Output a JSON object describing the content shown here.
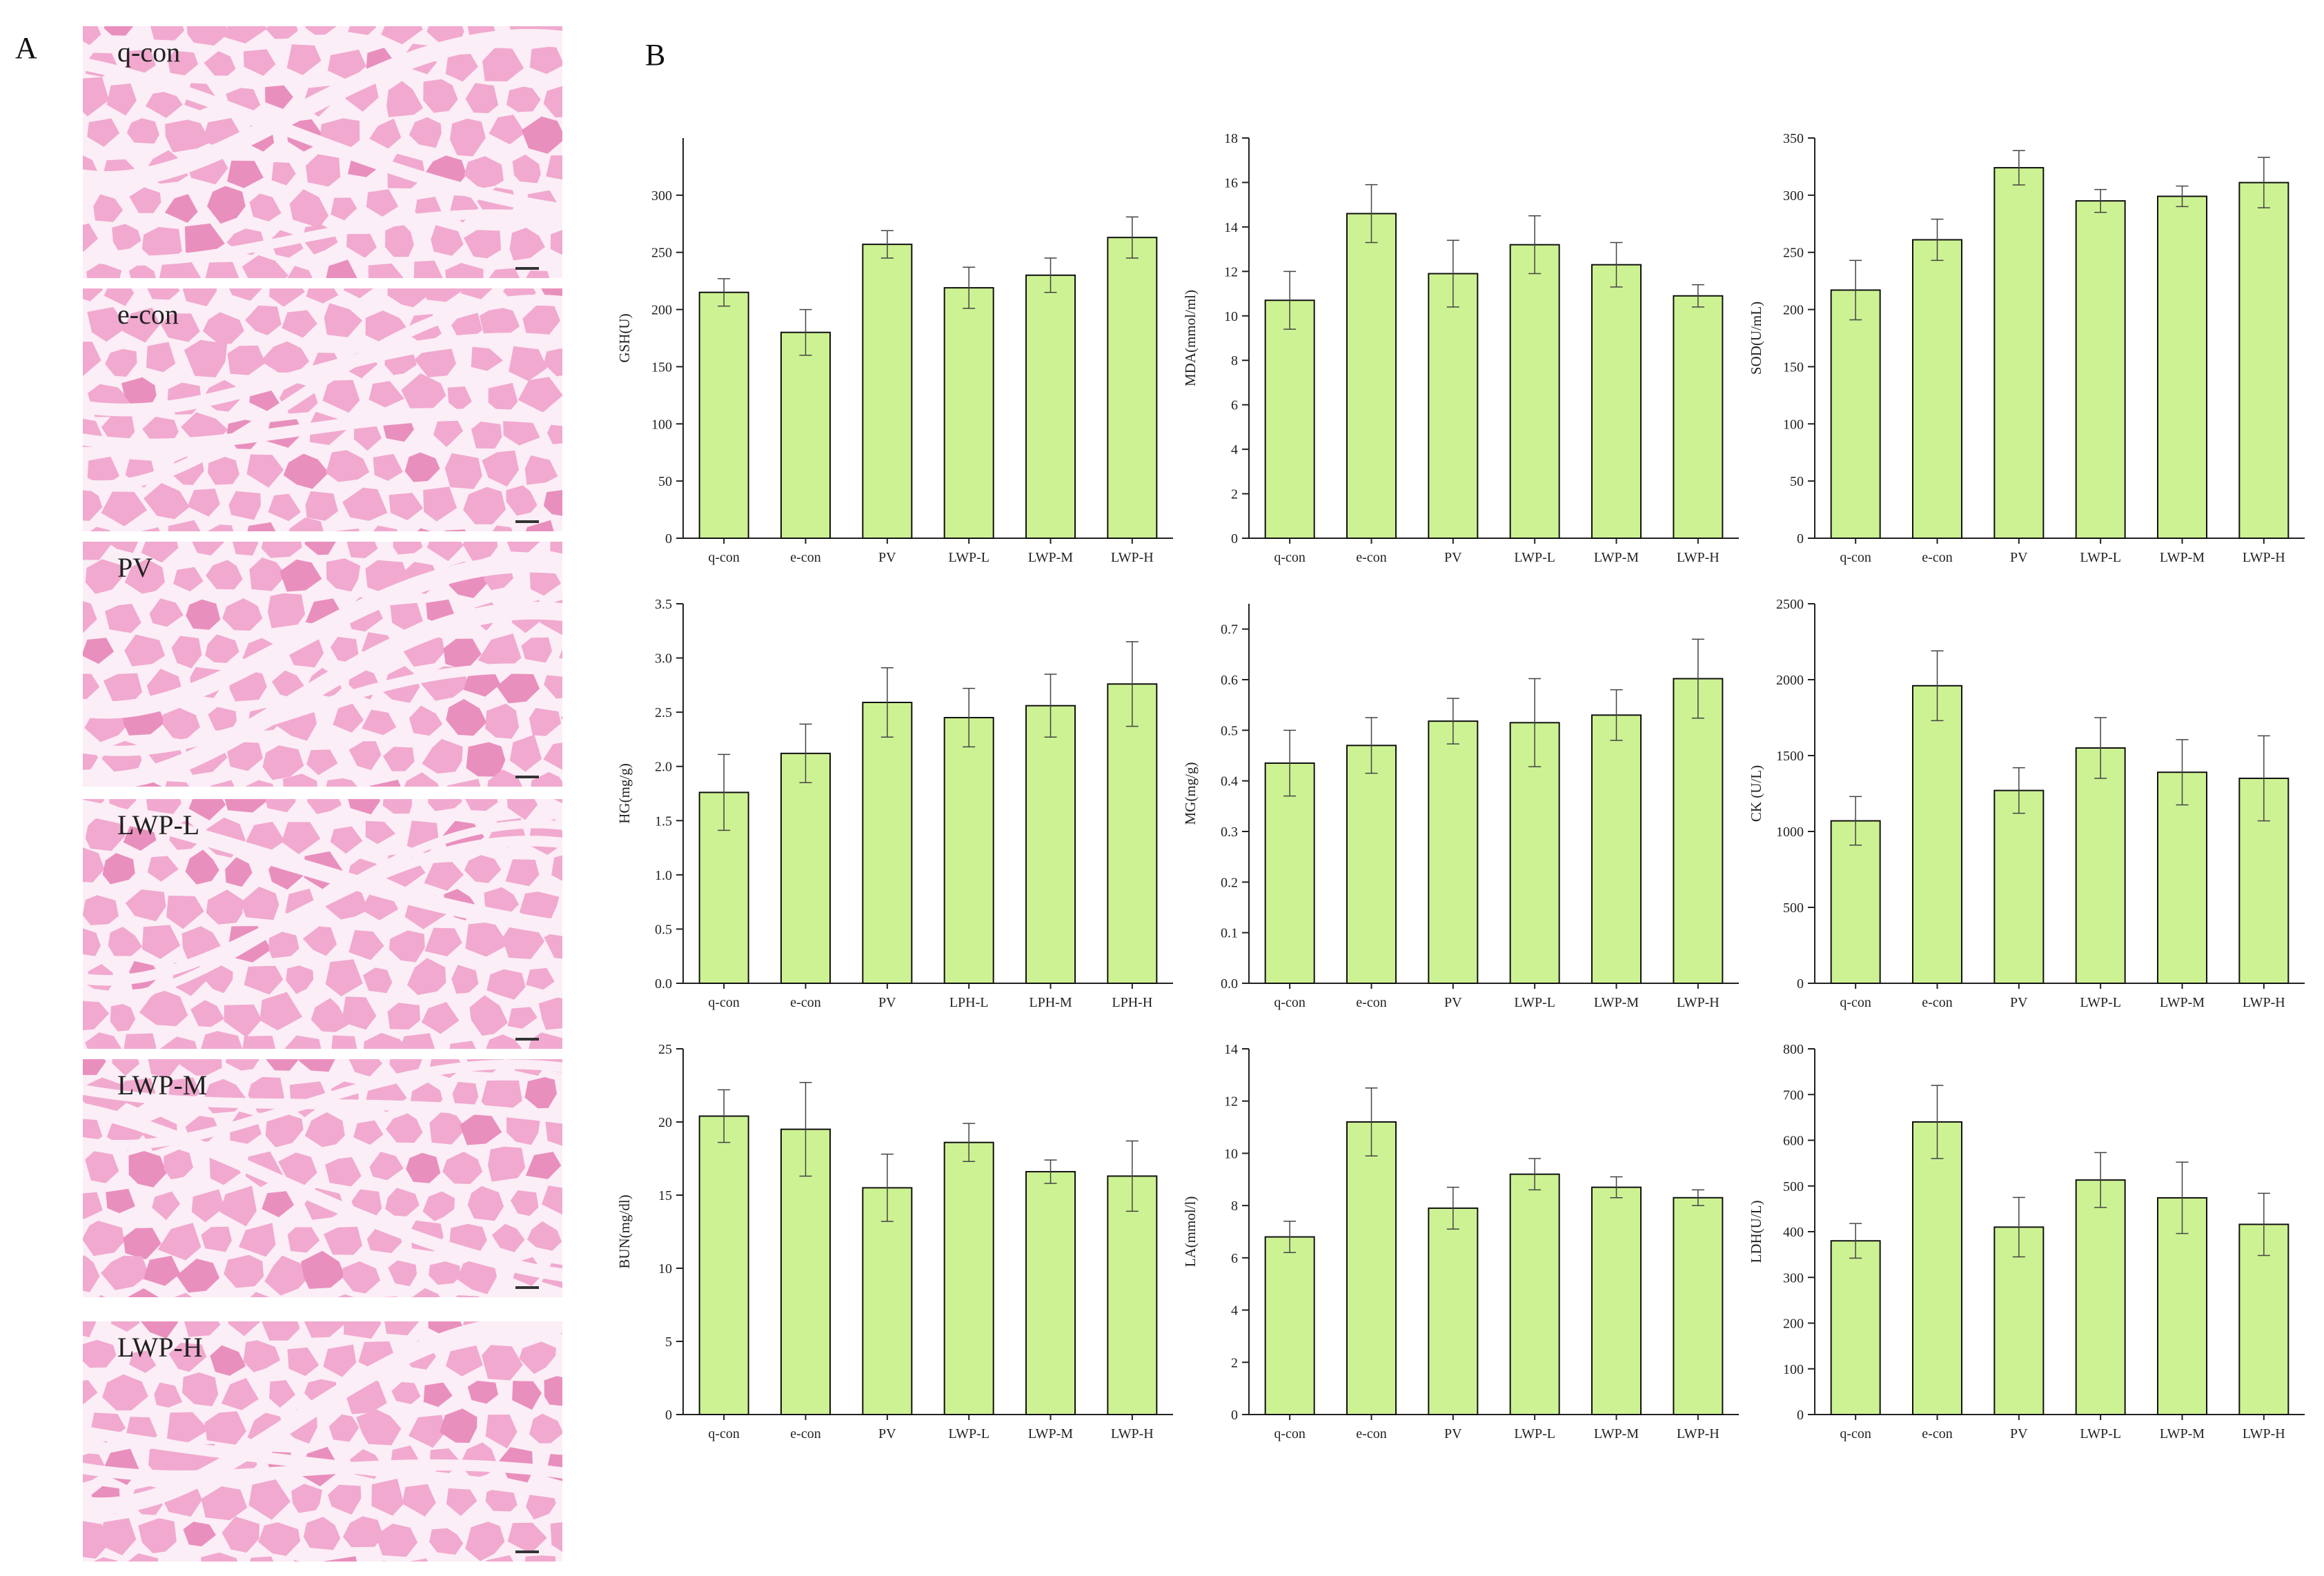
{
  "panels": {
    "a": "A",
    "b": "B"
  },
  "histology": {
    "tint": "#f1a9cf",
    "membrane": "#fbeef6",
    "labels": [
      "q-con",
      "e-con",
      "PV",
      "LWP-L",
      "LWP-M",
      "LWP-H"
    ]
  },
  "bar_color": "#cdf293",
  "chart_data": [
    {
      "type": "bar",
      "ylabel": "GSH(U)",
      "categories": [
        "q-con",
        "e-con",
        "PV",
        "LWP-L",
        "LWP-M",
        "LWP-H"
      ],
      "values": [
        215,
        180,
        257,
        219,
        230,
        263
      ],
      "errors": [
        12,
        20,
        12,
        18,
        15,
        18
      ],
      "ylim": [
        0,
        350
      ],
      "yticks": [
        0,
        50,
        100,
        150,
        200,
        250,
        300
      ]
    },
    {
      "type": "bar",
      "ylabel": "MDA(mmol/ml)",
      "categories": [
        "q-con",
        "e-con",
        "PV",
        "LWP-L",
        "LWP-M",
        "LWP-H"
      ],
      "values": [
        10.7,
        14.6,
        11.9,
        13.2,
        12.3,
        10.9
      ],
      "errors": [
        1.3,
        1.3,
        1.5,
        1.3,
        1.0,
        0.5
      ],
      "ylim": [
        0,
        18
      ],
      "yticks": [
        0,
        2,
        4,
        6,
        8,
        10,
        12,
        14,
        16,
        18
      ]
    },
    {
      "type": "bar",
      "ylabel": "SOD(U/mL)",
      "categories": [
        "q-con",
        "e-con",
        "PV",
        "LWP-L",
        "LWP-M",
        "LWP-H"
      ],
      "values": [
        217,
        261,
        324,
        295,
        299,
        311
      ],
      "errors": [
        26,
        18,
        15,
        10,
        9,
        22
      ],
      "ylim": [
        0,
        350
      ],
      "yticks": [
        0,
        50,
        100,
        150,
        200,
        250,
        300,
        350
      ]
    },
    {
      "type": "bar",
      "ylabel": "HG(mg/g)",
      "categories": [
        "q-con",
        "e-con",
        "PV",
        "LPH-L",
        "LPH-M",
        "LPH-H"
      ],
      "values": [
        1.76,
        2.12,
        2.59,
        2.45,
        2.56,
        2.76
      ],
      "errors": [
        0.35,
        0.27,
        0.32,
        0.27,
        0.29,
        0.39
      ],
      "ylim": [
        0,
        3.5
      ],
      "yticks": [
        "0.0",
        "0.5",
        "1.0",
        "1.5",
        "2.0",
        "2.5",
        "3.0",
        "3.5"
      ]
    },
    {
      "type": "bar",
      "ylabel": "MG(mg/g)",
      "categories": [
        "q-con",
        "e-con",
        "PV",
        "LWP-L",
        "LWP-M",
        "LWP-H"
      ],
      "values": [
        0.435,
        0.47,
        0.518,
        0.515,
        0.53,
        0.602
      ],
      "errors": [
        0.065,
        0.055,
        0.045,
        0.087,
        0.05,
        0.078
      ],
      "ylim": [
        0,
        0.75
      ],
      "yticks": [
        "0.0",
        "0.1",
        "0.2",
        "0.3",
        "0.4",
        "0.5",
        "0.6",
        "0.7"
      ]
    },
    {
      "type": "bar",
      "ylabel": "CK (U/L)",
      "categories": [
        "q-con",
        "e-con",
        "PV",
        "LWP-L",
        "LWP-M",
        "LWP-H"
      ],
      "values": [
        1070,
        1960,
        1270,
        1550,
        1390,
        1350
      ],
      "errors": [
        160,
        230,
        150,
        200,
        215,
        280
      ],
      "ylim": [
        0,
        2500
      ],
      "yticks": [
        0,
        500,
        1000,
        1500,
        2000,
        2500
      ]
    },
    {
      "type": "bar",
      "ylabel": "BUN(mg/dl)",
      "categories": [
        "q-con",
        "e-con",
        "PV",
        "LWP-L",
        "LWP-M",
        "LWP-H"
      ],
      "values": [
        20.4,
        19.5,
        15.5,
        18.6,
        16.6,
        16.3
      ],
      "errors": [
        1.8,
        3.2,
        2.3,
        1.3,
        0.8,
        2.4
      ],
      "ylim": [
        0,
        25
      ],
      "yticks": [
        0,
        5,
        10,
        15,
        20,
        25
      ]
    },
    {
      "type": "bar",
      "ylabel": "LA(mmol/l)",
      "categories": [
        "q-con",
        "e-con",
        "PV",
        "LWP-L",
        "LWP-M",
        "LWP-H"
      ],
      "values": [
        6.8,
        11.2,
        7.9,
        9.2,
        8.7,
        8.3
      ],
      "errors": [
        0.6,
        1.3,
        0.8,
        0.6,
        0.4,
        0.3
      ],
      "ylim": [
        0,
        14
      ],
      "yticks": [
        0,
        2,
        4,
        6,
        8,
        10,
        12,
        14
      ]
    },
    {
      "type": "bar",
      "ylabel": "LDH(U/L)",
      "categories": [
        "q-con",
        "e-con",
        "PV",
        "LWP-L",
        "LWP-M",
        "LWP-H"
      ],
      "values": [
        380,
        640,
        410,
        513,
        474,
        416
      ],
      "errors": [
        38,
        80,
        65,
        60,
        78,
        68
      ],
      "ylim": [
        0,
        800
      ],
      "yticks": [
        0,
        100,
        200,
        300,
        400,
        500,
        600,
        700,
        800
      ]
    }
  ]
}
